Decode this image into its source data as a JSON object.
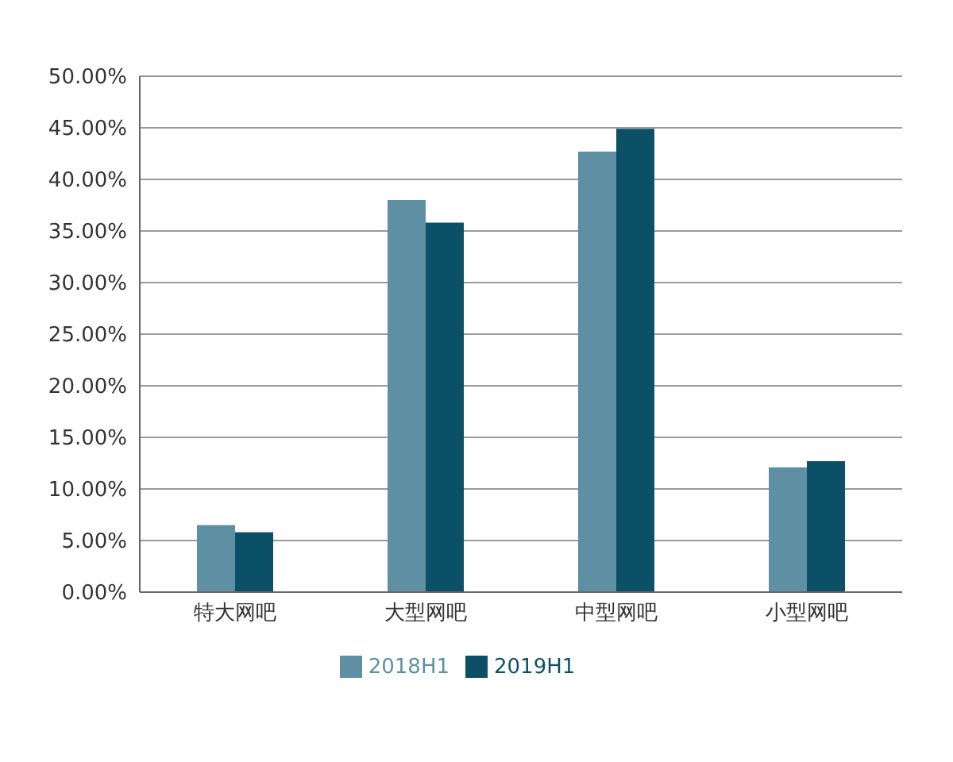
{
  "chart_data": {
    "type": "bar",
    "categories": [
      "特大网吧",
      "大型网吧",
      "中型网吧",
      "小型网吧"
    ],
    "series": [
      {
        "name": "2018H1",
        "color": "#5e8fa3",
        "values": [
          6.5,
          38.0,
          42.7,
          12.1
        ]
      },
      {
        "name": "2019H1",
        "color": "#0c5068",
        "values": [
          5.8,
          35.8,
          44.9,
          12.7
        ]
      }
    ],
    "ylim": [
      0,
      50
    ],
    "yticks": [
      {
        "value": 0,
        "label": "0.00%"
      },
      {
        "value": 5,
        "label": "5.00%"
      },
      {
        "value": 10,
        "label": "10.00%"
      },
      {
        "value": 15,
        "label": "15.00%"
      },
      {
        "value": 20,
        "label": "20.00%"
      },
      {
        "value": 25,
        "label": "25.00%"
      },
      {
        "value": 30,
        "label": "30.00%"
      },
      {
        "value": 35,
        "label": "35.00%"
      },
      {
        "value": 40,
        "label": "40.00%"
      },
      {
        "value": 45,
        "label": "45.00%"
      },
      {
        "value": 50,
        "label": "50.00%"
      }
    ],
    "grid": "y",
    "legend": "bottom"
  }
}
